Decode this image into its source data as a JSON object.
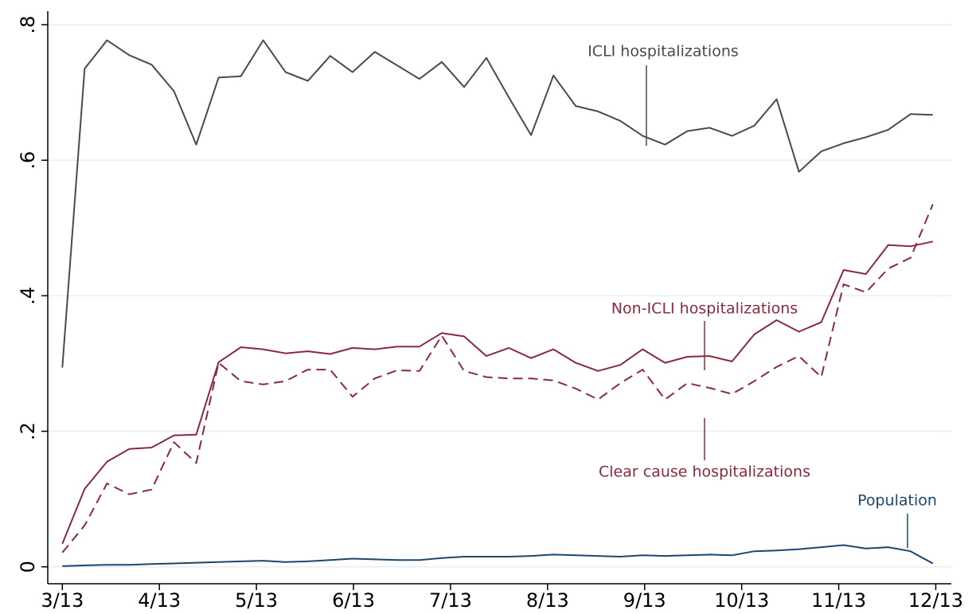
{
  "chart_data": {
    "type": "line",
    "x": [
      3,
      3.23,
      3.46,
      3.69,
      3.92,
      4.15,
      4.38,
      4.61,
      4.84,
      5.07,
      5.3,
      5.53,
      5.76,
      5.99,
      6.22,
      6.45,
      6.68,
      6.91,
      7.14,
      7.37,
      7.6,
      7.83,
      8.06,
      8.29,
      8.52,
      8.75,
      8.98,
      9.21,
      9.44,
      9.67,
      9.9,
      10.13,
      10.36,
      10.59,
      10.82,
      11.05,
      11.28,
      11.51,
      11.74,
      11.97
    ],
    "series": [
      {
        "name": "ICLI hospitalizations",
        "color": "#4a4a4a",
        "line_style": "solid",
        "values": [
          0.294,
          0.735,
          0.777,
          0.755,
          0.741,
          0.702,
          0.623,
          0.722,
          0.724,
          0.777,
          0.73,
          0.717,
          0.754,
          0.73,
          0.76,
          0.74,
          0.72,
          0.745,
          0.708,
          0.751,
          0.693,
          0.637,
          0.725,
          0.68,
          0.672,
          0.658,
          0.636,
          0.623,
          0.643,
          0.648,
          0.636,
          0.651,
          0.69,
          0.583,
          0.613,
          0.625,
          0.634,
          0.645,
          0.668,
          0.667
        ]
      },
      {
        "name": "Non-ICLI hospitalizations",
        "color": "#8b2a3a",
        "line_style": "solid",
        "values": [
          0.034,
          0.115,
          0.155,
          0.174,
          0.176,
          0.194,
          0.195,
          0.302,
          0.324,
          0.321,
          0.315,
          0.318,
          0.314,
          0.323,
          0.321,
          0.325,
          0.325,
          0.345,
          0.34,
          0.311,
          0.323,
          0.308,
          0.321,
          0.301,
          0.289,
          0.298,
          0.321,
          0.301,
          0.31,
          0.311,
          0.303,
          0.343,
          0.364,
          0.347,
          0.361,
          0.438,
          0.432,
          0.475,
          0.473,
          0.48
        ]
      },
      {
        "name": "Clear cause hospitalizations",
        "color": "#8b2a3a",
        "line_style": "dashed",
        "values": [
          0.021,
          0.061,
          0.123,
          0.107,
          0.114,
          0.184,
          0.153,
          0.301,
          0.274,
          0.269,
          0.274,
          0.291,
          0.291,
          0.251,
          0.278,
          0.29,
          0.289,
          0.341,
          0.289,
          0.28,
          0.278,
          0.278,
          0.275,
          0.263,
          0.247,
          0.271,
          0.291,
          0.247,
          0.271,
          0.264,
          0.255,
          0.274,
          0.295,
          0.311,
          0.28,
          0.417,
          0.405,
          0.44,
          0.456,
          0.535
        ]
      },
      {
        "name": "Population",
        "color": "#1a476f",
        "line_style": "solid",
        "values": [
          0.001,
          0.002,
          0.003,
          0.003,
          0.004,
          0.005,
          0.006,
          0.007,
          0.008,
          0.009,
          0.007,
          0.008,
          0.01,
          0.012,
          0.011,
          0.01,
          0.01,
          0.013,
          0.015,
          0.015,
          0.015,
          0.016,
          0.018,
          0.017,
          0.016,
          0.015,
          0.017,
          0.016,
          0.017,
          0.018,
          0.017,
          0.023,
          0.024,
          0.026,
          0.029,
          0.032,
          0.027,
          0.029,
          0.023,
          0.005
        ]
      }
    ],
    "xlim": [
      2.85,
      12.16
    ],
    "xticks": [
      {
        "value": 3,
        "label": "3/13"
      },
      {
        "value": 4,
        "label": "4/13"
      },
      {
        "value": 5,
        "label": "5/13"
      },
      {
        "value": 6,
        "label": "6/13"
      },
      {
        "value": 7,
        "label": "7/13"
      },
      {
        "value": 8,
        "label": "8/13"
      },
      {
        "value": 9,
        "label": "9/13"
      },
      {
        "value": 10,
        "label": "10/13"
      },
      {
        "value": 11,
        "label": "11/13"
      },
      {
        "value": 12,
        "label": "12/13"
      }
    ],
    "ylim": [
      -0.025,
      0.82
    ],
    "yticks": [
      0,
      {
        "value": 0.2,
        "label": ".2"
      },
      {
        "value": 0.4,
        "label": ".4"
      },
      {
        "value": 0.6,
        "label": ".6"
      },
      {
        "value": 0.8,
        "label": ".8"
      }
    ],
    "grid": true
  }
}
